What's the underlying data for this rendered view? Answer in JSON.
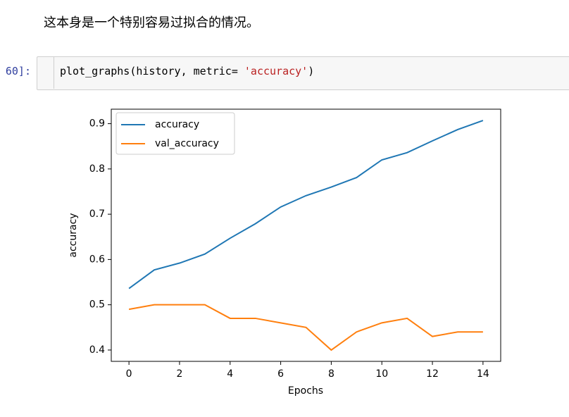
{
  "markdown": "这本身是一个特别容易过拟合的情况。",
  "cell": {
    "prompt": "60]:",
    "code": [
      "plot_graphs(history, metric= ",
      "'accuracy'",
      ")"
    ]
  },
  "chart_data": {
    "type": "line",
    "x_label": "Epochs",
    "y_label": "accuracy",
    "x": [
      0,
      1,
      2,
      3,
      4,
      5,
      6,
      7,
      8,
      9,
      10,
      11,
      12,
      13,
      14
    ],
    "series": [
      {
        "name": "accuracy",
        "color": "#1f77b4",
        "values": [
          0.536,
          0.577,
          0.592,
          0.612,
          0.647,
          0.679,
          0.716,
          0.741,
          0.76,
          0.781,
          0.82,
          0.836,
          0.862,
          0.887,
          0.907
        ]
      },
      {
        "name": "val_accuracy",
        "color": "#ff7f0e",
        "values": [
          0.49,
          0.5,
          0.5,
          0.5,
          0.47,
          0.47,
          0.46,
          0.45,
          0.4,
          0.44,
          0.46,
          0.47,
          0.43,
          0.44,
          0.44
        ]
      }
    ],
    "xlim": [
      -0.7,
      14.7
    ],
    "xticks": [
      0,
      2,
      4,
      6,
      8,
      10,
      12,
      14
    ],
    "ylim": [
      0.375,
      0.932
    ],
    "yticks": [
      0.4,
      0.5,
      0.6,
      0.7,
      0.8,
      0.9
    ],
    "legend": "upper left"
  }
}
